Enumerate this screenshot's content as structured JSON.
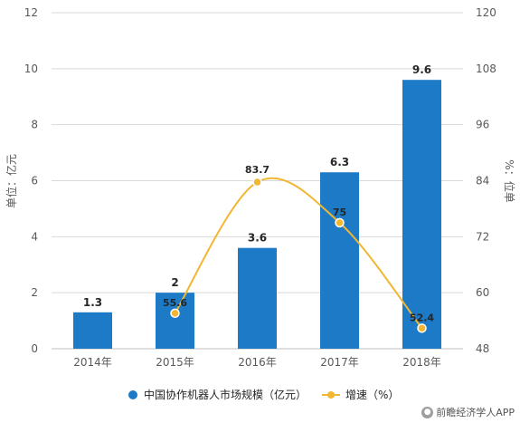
{
  "chart_data": {
    "type": "bar",
    "categories": [
      "2014年",
      "2015年",
      "2016年",
      "2017年",
      "2018年"
    ],
    "series": [
      {
        "name": "中国协作机器人市场规模（亿元）",
        "type": "bar",
        "axis": "left",
        "values": [
          1.3,
          2,
          3.6,
          6.3,
          9.6
        ],
        "labels": [
          "1.3",
          "2",
          "3.6",
          "6.3",
          "9.6"
        ],
        "color": "#1c7ac7"
      },
      {
        "name": "增速（%）",
        "type": "line",
        "axis": "right",
        "values": [
          null,
          55.6,
          83.7,
          75,
          52.4
        ],
        "labels": [
          "",
          "55.6",
          "83.7",
          "75",
          "52.4"
        ],
        "color": "#f2b632"
      }
    ],
    "ylabel": "单位：亿元",
    "ylabel_right": "%：位单",
    "ylim": [
      0,
      12
    ],
    "yticks": [
      "0",
      "2",
      "4",
      "6",
      "8",
      "10",
      "12"
    ],
    "ylim_right": [
      48,
      120
    ],
    "yticks_right": [
      "48",
      "60",
      "72",
      "84",
      "96",
      "108",
      "120"
    ],
    "grid": true,
    "legend_position": "bottom"
  },
  "footer": {
    "text": "前瞻经济学人APP",
    "icon": "wechat-icon"
  }
}
